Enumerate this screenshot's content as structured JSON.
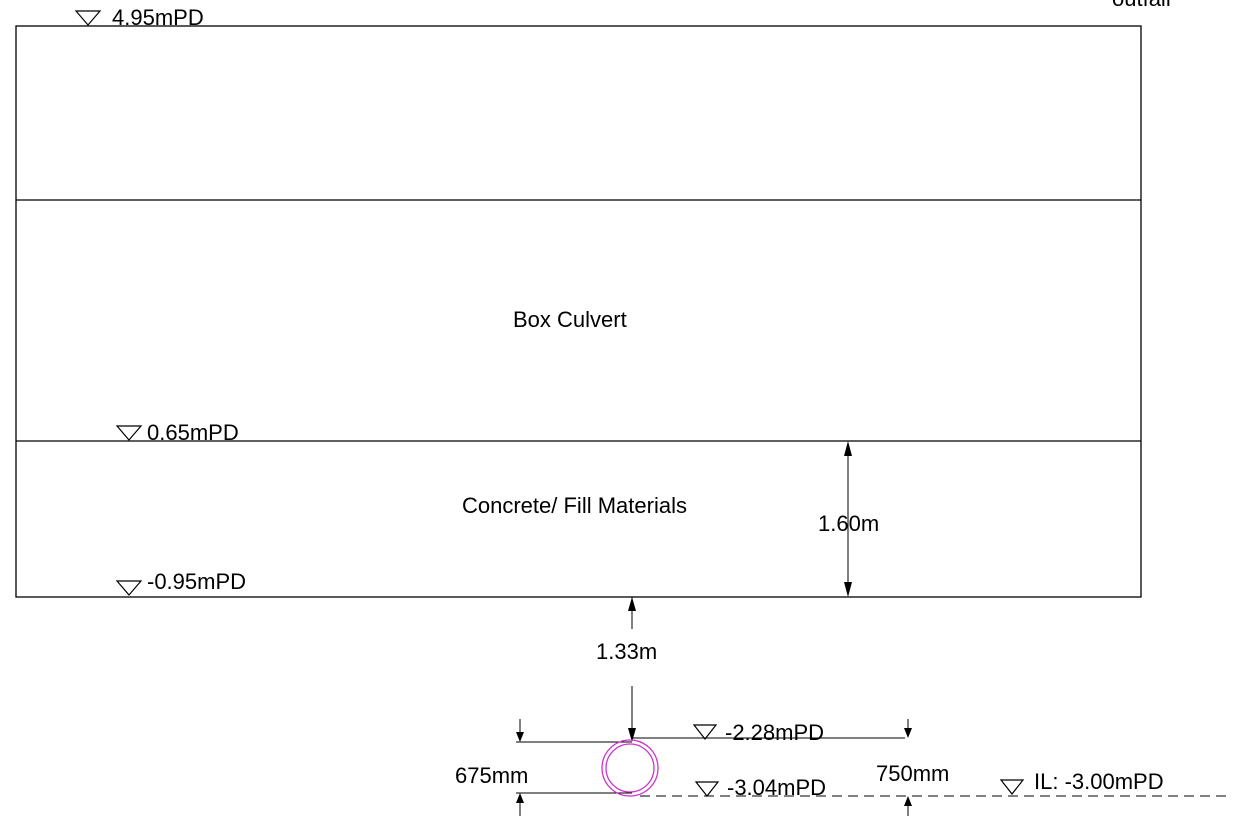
{
  "levels": {
    "top": "4.95mPD",
    "culvert_base": "0.65mPD",
    "fill_base": "-0.95mPD",
    "pipe_top": "-2.28mPD",
    "pipe_invert": "-3.04mPD",
    "il": "IL: -3.00mPD"
  },
  "labels": {
    "box_culvert": "Box Culvert",
    "fill": "Concrete/ Fill Materials",
    "outfall_partial": "outfall"
  },
  "dimensions": {
    "fill_thickness": "1.60m",
    "cover_to_pipe": "1.33m",
    "pipe_dia_left": "675mm",
    "pipe_dia_right": "750mm"
  },
  "colors": {
    "line": "#000000",
    "pipe": "#cc33cc"
  }
}
